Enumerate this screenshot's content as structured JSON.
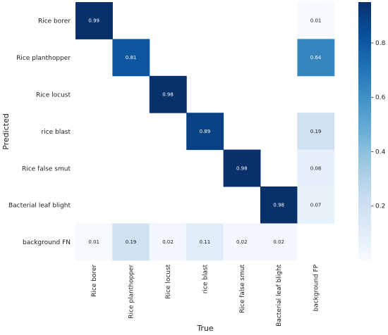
{
  "chart_data": {
    "type": "heatmap",
    "xlabel": "True",
    "ylabel": "Predicted",
    "x_categories": [
      "Rice borer",
      "Rice planthopper",
      "Rice locust",
      "rice blast",
      "Rice false smut",
      "Bacterial leaf blight",
      "background FP"
    ],
    "y_categories": [
      "Rice borer",
      "Rice planthopper",
      "Rice locust",
      "rice blast",
      "Rice false smut",
      "Bacterial leaf blight",
      "background FN"
    ],
    "cells": [
      {
        "row": 0,
        "col": 0,
        "value": 0.99,
        "label": "0.99"
      },
      {
        "row": 0,
        "col": 6,
        "value": 0.01,
        "label": "0.01"
      },
      {
        "row": 1,
        "col": 1,
        "value": 0.81,
        "label": "0.81"
      },
      {
        "row": 1,
        "col": 6,
        "value": 0.64,
        "label": "0.64"
      },
      {
        "row": 2,
        "col": 2,
        "value": 0.98,
        "label": "0.98"
      },
      {
        "row": 3,
        "col": 3,
        "value": 0.89,
        "label": "0.89"
      },
      {
        "row": 3,
        "col": 6,
        "value": 0.19,
        "label": "0.19"
      },
      {
        "row": 4,
        "col": 4,
        "value": 0.98,
        "label": "0.98"
      },
      {
        "row": 4,
        "col": 6,
        "value": 0.08,
        "label": "0.08"
      },
      {
        "row": 5,
        "col": 5,
        "value": 0.98,
        "label": "0.98"
      },
      {
        "row": 5,
        "col": 6,
        "value": 0.07,
        "label": "0.07"
      },
      {
        "row": 6,
        "col": 0,
        "value": 0.01,
        "label": "0.01"
      },
      {
        "row": 6,
        "col": 1,
        "value": 0.19,
        "label": "0.19"
      },
      {
        "row": 6,
        "col": 2,
        "value": 0.02,
        "label": "0.02"
      },
      {
        "row": 6,
        "col": 3,
        "value": 0.11,
        "label": "0.11"
      },
      {
        "row": 6,
        "col": 4,
        "value": 0.02,
        "label": "0.02"
      },
      {
        "row": 6,
        "col": 5,
        "value": 0.02,
        "label": "0.02"
      }
    ],
    "colorbar": {
      "min": 0,
      "max": 0.95,
      "ticks": [
        0.2,
        0.4,
        0.6,
        0.8
      ],
      "tick_labels": [
        "0.2",
        "0.4",
        "0.6",
        "0.8"
      ],
      "colormap": "Blues",
      "color_low": "#f7fbff",
      "color_high": "#08306b"
    }
  }
}
